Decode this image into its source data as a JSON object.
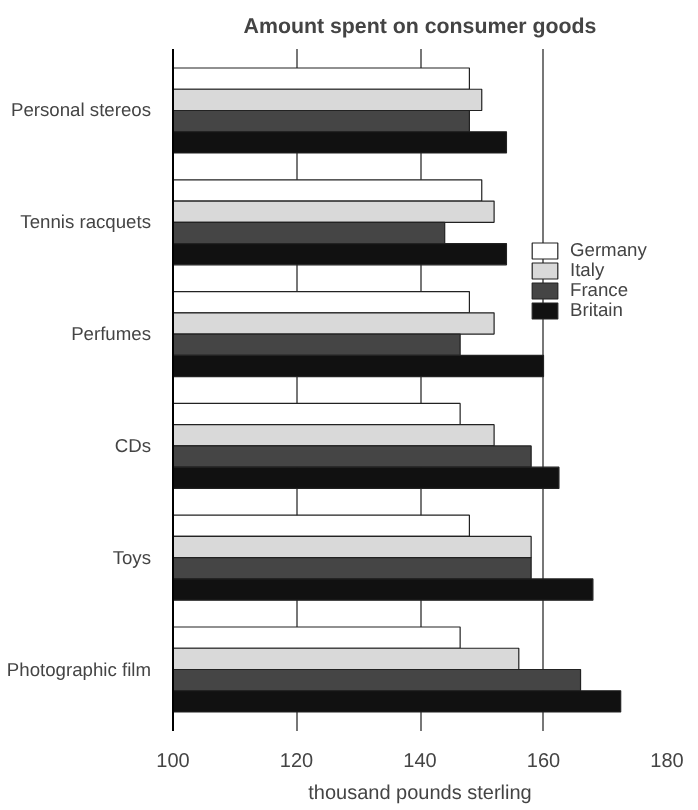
{
  "chart_data": {
    "type": "bar",
    "orientation": "horizontal",
    "title": "Amount spent on consumer goods",
    "xlabel": "thousand pounds sterling",
    "categories": [
      "Personal stereos",
      "Tennis racquets",
      "Perfumes",
      "CDs",
      "Toys",
      "Photographic film"
    ],
    "series": [
      {
        "name": "Germany",
        "color": "#ffffff",
        "values": [
          148,
          150,
          148,
          146.5,
          148,
          146.5
        ]
      },
      {
        "name": "Italy",
        "color": "#d9d9d9",
        "values": [
          150,
          152,
          152,
          152,
          158,
          156
        ]
      },
      {
        "name": "France",
        "color": "#454545",
        "values": [
          148,
          144,
          146.5,
          158,
          158,
          166
        ]
      },
      {
        "name": "Britain",
        "color": "#111111",
        "values": [
          154,
          154,
          160,
          162.5,
          168,
          172.5
        ]
      }
    ],
    "xlim": [
      100,
      180
    ],
    "xticks": [
      100,
      120,
      140,
      160,
      180
    ],
    "grid": "x",
    "legend": "right"
  }
}
